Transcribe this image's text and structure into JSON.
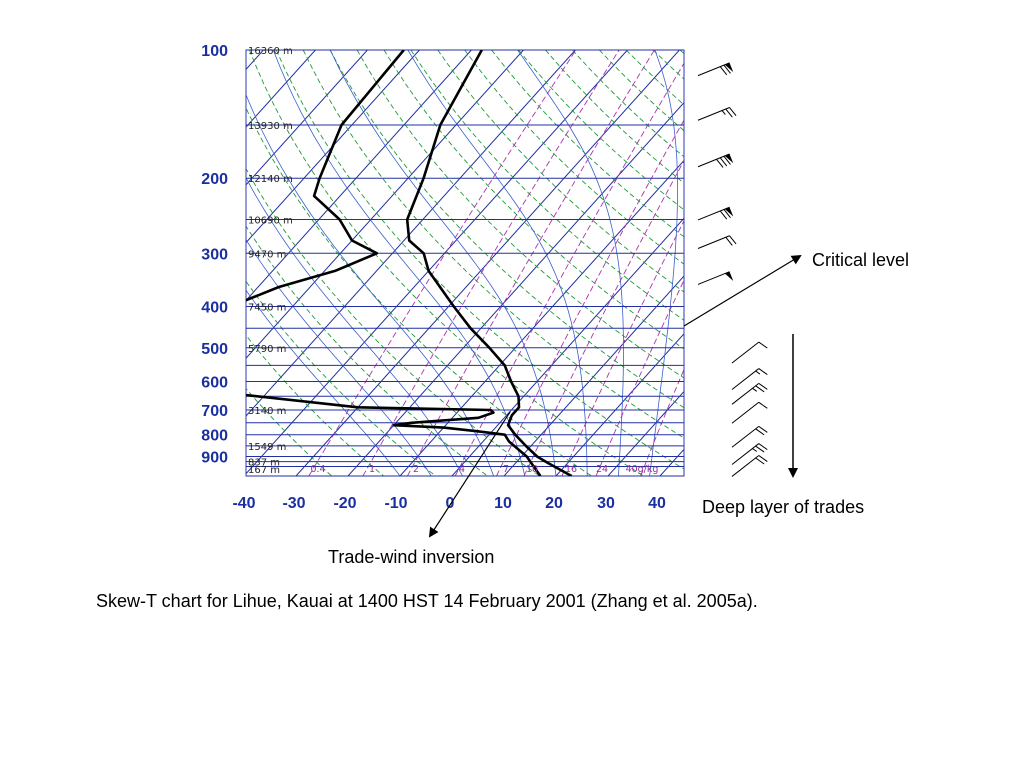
{
  "chart_data": {
    "type": "skew-t",
    "pressure_ticks": [
      "100",
      "200",
      "300",
      "400",
      "500",
      "600",
      "700",
      "800",
      "900"
    ],
    "temperature_ticks": [
      "-40",
      "-30",
      "-20",
      "-10",
      "0",
      "10",
      "20",
      "30",
      "40"
    ],
    "height_labels": [
      {
        "p": 100,
        "text": "16360 m"
      },
      {
        "p": 150,
        "text": "13930 m"
      },
      {
        "p": 200,
        "text": "12140 m"
      },
      {
        "p": 250,
        "text": "10690 m"
      },
      {
        "p": 300,
        "text": "9470 m"
      },
      {
        "p": 400,
        "text": "7450 m"
      },
      {
        "p": 500,
        "text": "5790 m"
      },
      {
        "p": 700,
        "text": "3140 m"
      },
      {
        "p": 850,
        "text": "1549 m"
      },
      {
        "p": 925,
        "text": "837 m"
      },
      {
        "p": 1000,
        "text": "167 m"
      }
    ],
    "mixing_ratio_labels": [
      "0.4",
      "1",
      "2",
      "4",
      "7",
      "10",
      "16",
      "24",
      "40g/kg"
    ],
    "temperature_profile": [
      [
        100,
        -68
      ],
      [
        150,
        -63
      ],
      [
        200,
        -57
      ],
      [
        250,
        -53
      ],
      [
        280,
        -49
      ],
      [
        300,
        -44
      ],
      [
        330,
        -40
      ],
      [
        400,
        -29
      ],
      [
        450,
        -22
      ],
      [
        500,
        -15
      ],
      [
        550,
        -9
      ],
      [
        600,
        -5
      ],
      [
        650,
        -1
      ],
      [
        690,
        1
      ],
      [
        700,
        1
      ],
      [
        720,
        1
      ],
      [
        760,
        2
      ],
      [
        800,
        5
      ],
      [
        850,
        9
      ],
      [
        900,
        13
      ],
      [
        930,
        16
      ],
      [
        1000,
        23
      ]
    ],
    "dewpoint_profile": [
      [
        100,
        -83
      ],
      [
        150,
        -82
      ],
      [
        200,
        -77
      ],
      [
        220,
        -75
      ],
      [
        250,
        -66
      ],
      [
        280,
        -60
      ],
      [
        300,
        -53
      ],
      [
        330,
        -58
      ],
      [
        360,
        -66
      ],
      [
        400,
        -72
      ],
      [
        450,
        -73
      ],
      [
        500,
        -68
      ],
      [
        550,
        -74
      ],
      [
        600,
        -80
      ],
      [
        690,
        -30
      ],
      [
        700,
        -4
      ],
      [
        710,
        -3
      ],
      [
        730,
        -5
      ],
      [
        750,
        -17
      ],
      [
        760,
        -20
      ],
      [
        770,
        -10
      ],
      [
        785,
        -3
      ],
      [
        800,
        3
      ],
      [
        830,
        5
      ],
      [
        900,
        11
      ],
      [
        1000,
        17
      ]
    ],
    "wind_barbs": {
      "upper": [
        {
          "p": 110,
          "speed_kt": 70
        },
        {
          "p": 140,
          "speed_kt": 25
        },
        {
          "p": 180,
          "speed_kt": 80
        },
        {
          "p": 240,
          "speed_kt": 70
        },
        {
          "p": 280,
          "speed_kt": 20
        },
        {
          "p": 340,
          "speed_kt": 50
        }
      ],
      "lower": [
        {
          "p": 520,
          "speed_kt": 10
        },
        {
          "p": 600,
          "speed_kt": 15
        },
        {
          "p": 650,
          "speed_kt": 25
        },
        {
          "p": 720,
          "speed_kt": 10
        },
        {
          "p": 820,
          "speed_kt": 20
        },
        {
          "p": 900,
          "speed_kt": 25
        },
        {
          "p": 960,
          "speed_kt": 20
        }
      ]
    },
    "annotations": {
      "critical_level": "Critical level",
      "deep_trades": "Deep layer of trades",
      "inversion": "Trade-wind inversion"
    }
  },
  "caption": "Skew-T chart for Lihue, Kauai at 1400 HST 14 February 2001 (Zhang et al. 2005a)."
}
